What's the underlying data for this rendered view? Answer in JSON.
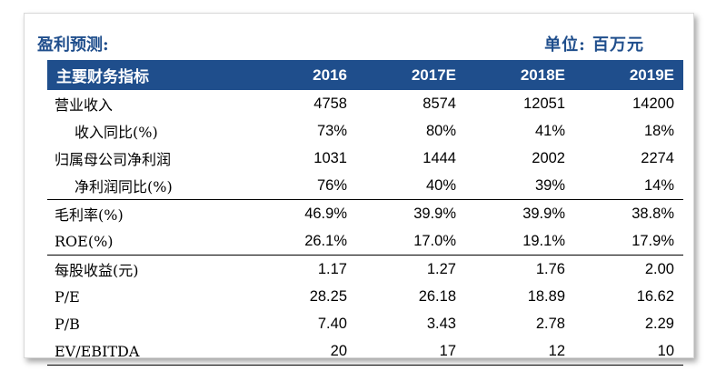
{
  "header": {
    "title": "盈利预测:",
    "unit": "单位: 百万元"
  },
  "table": {
    "columns": [
      "主要财务指标",
      "2016",
      "2017E",
      "2018E",
      "2019E"
    ],
    "rows": [
      {
        "label": "营业收入",
        "values": [
          "4758",
          "8574",
          "12051",
          "14200"
        ]
      },
      {
        "label": "收入同比(%)",
        "values": [
          "73%",
          "80%",
          "41%",
          "18%"
        ]
      },
      {
        "label": "归属母公司净利润",
        "values": [
          "1031",
          "1444",
          "2002",
          "2274"
        ]
      },
      {
        "label": "净利润同比(%)",
        "values": [
          "76%",
          "40%",
          "39%",
          "14%"
        ]
      },
      {
        "label": "毛利率(%)",
        "values": [
          "46.9%",
          "39.9%",
          "39.9%",
          "38.8%"
        ]
      },
      {
        "label": "ROE(%)",
        "values": [
          "26.1%",
          "17.0%",
          "19.1%",
          "17.9%"
        ]
      },
      {
        "label": "每股收益(元)",
        "values": [
          "1.17",
          "1.27",
          "1.76",
          "2.00"
        ]
      },
      {
        "label": "P/E",
        "values": [
          "28.25",
          "26.18",
          "18.89",
          "16.62"
        ]
      },
      {
        "label": "P/B",
        "values": [
          "7.40",
          "3.43",
          "2.78",
          "2.29"
        ]
      },
      {
        "label": "EV/EBITDA",
        "values": [
          "20",
          "17",
          "12",
          "10"
        ]
      }
    ]
  }
}
